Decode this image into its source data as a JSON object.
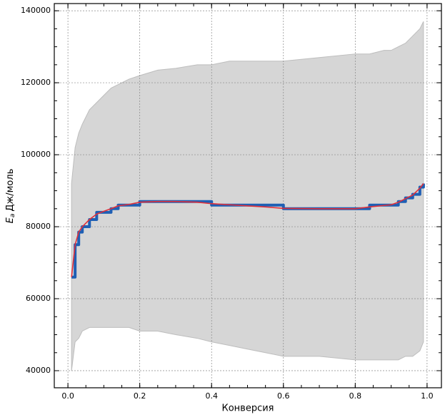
{
  "chart_data": {
    "type": "line",
    "xlabel": "Конверсия",
    "ylabel": {
      "symbol": "E",
      "subscript": "a",
      "unit": "Дж/моль"
    },
    "x": [
      0.01,
      0.02,
      0.03,
      0.04,
      0.06,
      0.08,
      0.1,
      0.12,
      0.14,
      0.17,
      0.2,
      0.25,
      0.3,
      0.36,
      0.4,
      0.45,
      0.5,
      0.55,
      0.6,
      0.7,
      0.8,
      0.84,
      0.88,
      0.9,
      0.92,
      0.94,
      0.96,
      0.98,
      0.99
    ],
    "band": {
      "color": "#d6d6d6",
      "edge": "#bdbdbd",
      "upper": [
        92000,
        102000,
        106000,
        108500,
        112500,
        114500,
        116500,
        118500,
        119500,
        121000,
        122000,
        123500,
        124000,
        125000,
        125000,
        126000,
        126000,
        126000,
        126000,
        127000,
        128000,
        128000,
        129000,
        129000,
        130000,
        131000,
        133000,
        135000,
        137000
      ],
      "lower": [
        40000,
        48000,
        49000,
        51000,
        52000,
        52000,
        52000,
        52000,
        52000,
        52000,
        51000,
        51000,
        50000,
        49000,
        48000,
        47000,
        46000,
        45000,
        44000,
        44000,
        43000,
        43000,
        43000,
        43000,
        43000,
        44000,
        44000,
        45500,
        48000
      ]
    },
    "series": [
      {
        "color": "#1f5fb4",
        "width": 4,
        "step": true,
        "values": [
          66000,
          75000,
          78500,
          80000,
          82000,
          84000,
          84000,
          85000,
          86000,
          86000,
          87000,
          87000,
          87000,
          87000,
          86000,
          86000,
          86000,
          86000,
          85000,
          85000,
          85000,
          86000,
          86000,
          86000,
          87000,
          88000,
          89000,
          91000,
          92000
        ]
      },
      {
        "color": "#e0303a",
        "width": 1.6,
        "step": false,
        "values": [
          66000,
          75000,
          78500,
          80000,
          82000,
          83500,
          84300,
          85000,
          85800,
          86200,
          86800,
          87000,
          87000,
          86800,
          86400,
          86100,
          85800,
          85500,
          85100,
          85000,
          85000,
          85500,
          85900,
          86100,
          86800,
          87800,
          88800,
          90700,
          92000
        ]
      }
    ],
    "xlim": [
      -0.038,
      1.04
    ],
    "ylim": [
      35250,
      142000
    ],
    "xticks": [
      {
        "value": 0,
        "label": "0.0"
      },
      0.2,
      0.4,
      0.6,
      0.8,
      {
        "value": 1,
        "label": "1.0"
      }
    ],
    "yticks": [
      40000,
      60000,
      80000,
      100000,
      120000,
      140000
    ],
    "grid": true,
    "minor_ticks": true
  }
}
